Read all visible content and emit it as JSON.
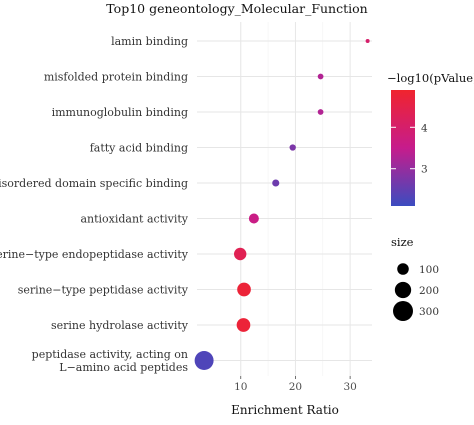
{
  "chart_data": {
    "type": "scatter",
    "title": "Top10 geneontology_Molecular_Function",
    "xlabel": "Enrichment Ratio",
    "ylabel": "",
    "xlim": [
      2,
      34
    ],
    "xticks": [
      10,
      20,
      30
    ],
    "grid": true,
    "categories": [
      "lamin binding",
      "misfolded protein binding",
      "immunoglobulin binding",
      "fatty acid binding",
      "disordered domain specific binding",
      "antioxidant activity",
      "serine−type endopeptidase activity",
      "serine−type peptidase activity",
      "serine hydrolase activity",
      "peptidase activity, acting on\nL−amino acid peptides"
    ],
    "points": [
      {
        "x": 33.2,
        "size": 12,
        "neg_log10_p": 4.0
      },
      {
        "x": 24.6,
        "size": 25,
        "neg_log10_p": 3.3
      },
      {
        "x": 24.6,
        "size": 25,
        "neg_log10_p": 3.3
      },
      {
        "x": 19.5,
        "size": 30,
        "neg_log10_p": 2.75
      },
      {
        "x": 16.4,
        "size": 38,
        "neg_log10_p": 2.6
      },
      {
        "x": 12.4,
        "size": 75,
        "neg_log10_p": 3.6
      },
      {
        "x": 9.9,
        "size": 115,
        "neg_log10_p": 4.35
      },
      {
        "x": 10.6,
        "size": 140,
        "neg_log10_p": 4.75
      },
      {
        "x": 10.5,
        "size": 140,
        "neg_log10_p": 4.75
      },
      {
        "x": 3.3,
        "size": 270,
        "neg_log10_p": 2.3
      }
    ],
    "color_legend": {
      "title": "−log10(pValue)",
      "range": [
        2.1,
        4.9
      ],
      "ticks": [
        3,
        4
      ],
      "low_color": "#3b4cc0",
      "high_color": "#f0242e"
    },
    "size_legend": {
      "title": "size",
      "entries": [
        100,
        200,
        300
      ]
    },
    "legend_position": "right"
  }
}
